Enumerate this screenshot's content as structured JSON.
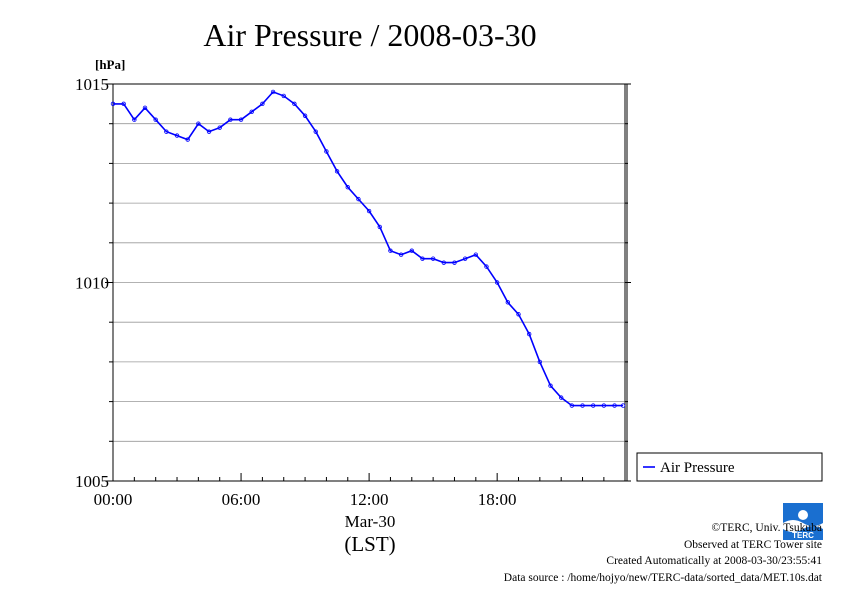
{
  "chart_data": {
    "type": "line",
    "title": "Air Pressure / 2008-03-30",
    "ylabel": "[hPa]",
    "xlabel": "(LST)",
    "date_label": "Mar-30",
    "x_unit": "hour",
    "xlim": [
      0,
      23.99
    ],
    "ylim": [
      1005,
      1015
    ],
    "y_ticks": [
      "1005",
      "1010",
      "1015"
    ],
    "x_ticks": [
      {
        "x": 0,
        "label": "00:00"
      },
      {
        "x": 6,
        "label": "06:00"
      },
      {
        "x": 12,
        "label": "12:00"
      },
      {
        "x": 18,
        "label": "18:00"
      }
    ],
    "grid": true,
    "legend_position": "right",
    "series": [
      {
        "name": "Air Pressure",
        "color": "#0000ff",
        "x": [
          0,
          0.5,
          1.0,
          1.5,
          2.0,
          2.5,
          3.0,
          3.5,
          4.0,
          4.5,
          5.0,
          5.5,
          6.0,
          6.5,
          7.0,
          7.5,
          8.0,
          8.5,
          9.0,
          9.5,
          10.0,
          10.5,
          11.0,
          11.5,
          12.0,
          12.5,
          13.0,
          13.5,
          14.0,
          14.5,
          15.0,
          15.5,
          16.0,
          16.5,
          17.0,
          17.5,
          18.0,
          18.5,
          19.0,
          19.5,
          20.0,
          20.5,
          21.0,
          21.5,
          22.0,
          22.5,
          23.0,
          23.5,
          23.9
        ],
        "values": [
          1014.5,
          1014.5,
          1014.1,
          1014.4,
          1014.1,
          1013.8,
          1013.7,
          1013.6,
          1014.0,
          1013.8,
          1013.9,
          1014.1,
          1014.1,
          1014.3,
          1014.5,
          1014.8,
          1014.7,
          1014.5,
          1014.2,
          1013.8,
          1013.3,
          1012.8,
          1012.4,
          1012.1,
          1011.8,
          1011.4,
          1010.8,
          1010.7,
          1010.8,
          1010.6,
          1010.6,
          1010.5,
          1010.5,
          1010.6,
          1010.7,
          1010.4,
          1010.0,
          1009.5,
          1009.2,
          1008.7,
          1008.0,
          1007.4,
          1007.1,
          1006.9,
          1006.9,
          1006.9,
          1006.9,
          1006.9,
          1006.9
        ]
      }
    ]
  },
  "credits": {
    "copyright": "©TERC, Univ. Tsukuba",
    "observed": "Observed at TERC Tower site",
    "created": "Created Automatically at 2008-03-30/23:55:41",
    "source": "Data source : /home/hojyo/new/TERC-data/sorted_data/MET.10s.dat"
  },
  "logo": {
    "text": "TERC",
    "color": "#1a6fd0"
  }
}
